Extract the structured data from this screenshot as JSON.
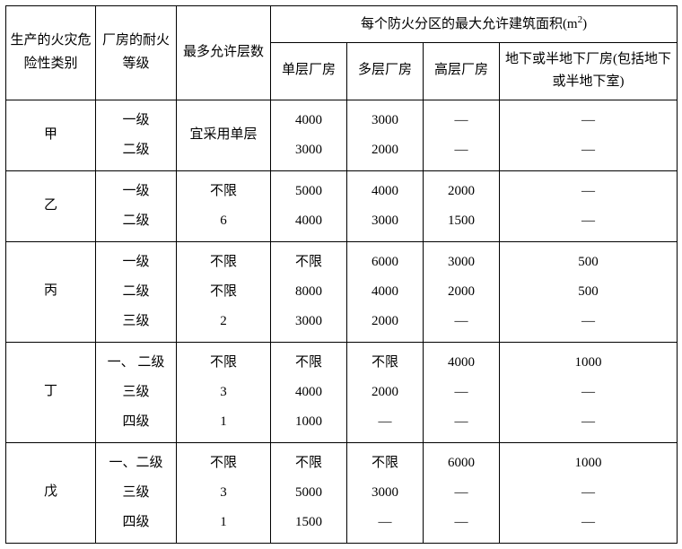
{
  "table": {
    "header": {
      "category": "生产的火灾危险性类别",
      "grade": "厂房的耐火等级",
      "maxFloors": "最多允许层数",
      "areaHeader": "每个防火分区的最大允许建筑面积(m²)",
      "single": "单层厂房",
      "multi": "多层厂房",
      "high": "高层厂房",
      "underground": "地下或半地下厂房(包括地下或半地下室)"
    },
    "rows": {
      "jia": {
        "category": "甲",
        "grades": "一级\n二级",
        "floors": "宜采用单层",
        "single": "4000\n3000",
        "multi": "3000\n2000",
        "high": "—\n—",
        "underground": "—\n—"
      },
      "yi": {
        "category": "乙",
        "grades": "一级\n二级",
        "floors": "不限\n6",
        "single": "5000\n4000",
        "multi": "4000\n3000",
        "high": "2000\n1500",
        "underground": "—\n—"
      },
      "bing": {
        "category": "丙",
        "grades": "一级\n二级\n三级",
        "floors": "不限\n不限\n2",
        "single": "不限\n8000\n3000",
        "multi": "6000\n4000\n2000",
        "high": "3000\n2000\n—",
        "underground": "500\n500\n—"
      },
      "ding": {
        "category": "丁",
        "grades": "一、 二级\n三级\n四级",
        "floors": "不限\n3\n1",
        "single": "不限\n4000\n1000",
        "multi": "不限\n2000\n—",
        "high": "4000\n—\n—",
        "underground": "1000\n—\n—"
      },
      "wu": {
        "category": "戊",
        "grades": "一、二级\n三级\n四级",
        "floors": "不限\n3\n1",
        "single": "不限\n5000\n1500",
        "multi": "不限\n3000\n—",
        "high": "6000\n—\n—",
        "underground": "1000\n—\n—"
      }
    }
  }
}
